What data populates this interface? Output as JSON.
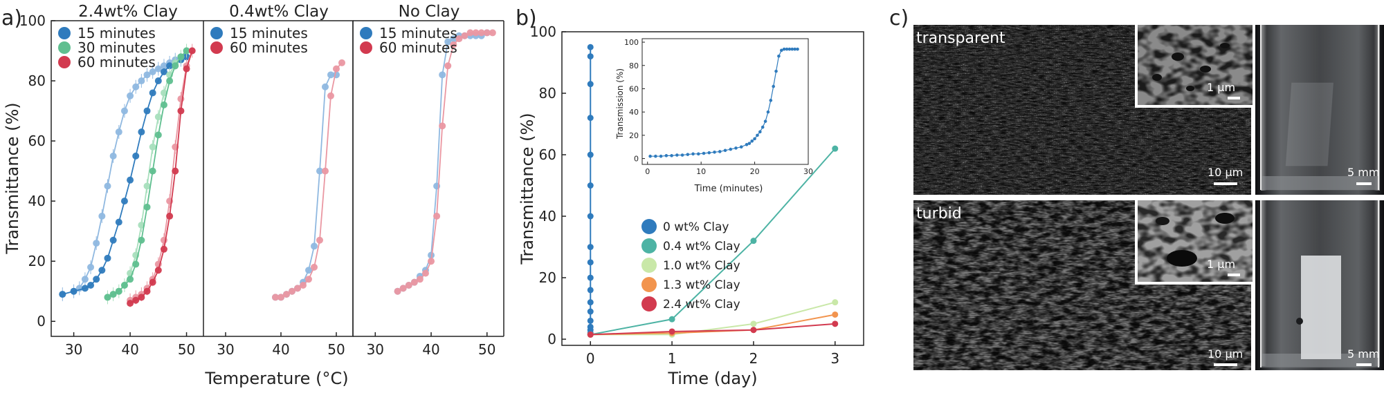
{
  "panel_labels": {
    "a": "a)",
    "b": "b)",
    "c": "c)"
  },
  "chart_data": [
    {
      "panel": "a",
      "type": "line",
      "ylabel": "Transmittance (%)",
      "xlabel": "Temperature (°C)",
      "ylim": [
        -5,
        100
      ],
      "yticks": [
        0,
        20,
        40,
        60,
        80,
        100
      ],
      "subplots": [
        {
          "title": "2.4wt% Clay",
          "xlim": [
            26,
            53
          ],
          "xticks": [
            30,
            40,
            50
          ],
          "series": [
            {
              "name": "15 minutes",
              "color": "#2f7bbd",
              "light_color": "#8fb8e0",
              "runs": [
                {
                  "x": [
                    28,
                    30,
                    31,
                    32,
                    33,
                    34,
                    35,
                    36,
                    37,
                    38,
                    39,
                    40,
                    41,
                    42,
                    43,
                    44,
                    45,
                    46,
                    47,
                    48,
                    49,
                    50
                  ],
                  "y": [
                    9,
                    10,
                    11,
                    14,
                    18,
                    26,
                    35,
                    45,
                    55,
                    63,
                    70,
                    75,
                    78,
                    80,
                    82,
                    83,
                    84,
                    85,
                    86,
                    87,
                    87,
                    88
                  ]
                },
                {
                  "x": [
                    28,
                    30,
                    32,
                    33,
                    34,
                    35,
                    36,
                    37,
                    38,
                    39,
                    40,
                    41,
                    42,
                    43,
                    44,
                    45,
                    46,
                    47,
                    48,
                    49,
                    50
                  ],
                  "y": [
                    9,
                    10,
                    11,
                    12,
                    14,
                    17,
                    21,
                    27,
                    33,
                    40,
                    47,
                    55,
                    63,
                    70,
                    76,
                    80,
                    83,
                    85,
                    86,
                    87,
                    88
                  ]
                }
              ]
            },
            {
              "name": "30 minutes",
              "color": "#5fbf8f",
              "light_color": "#a8dfbd",
              "runs": [
                {
                  "x": [
                    36,
                    37,
                    38,
                    39,
                    40,
                    41,
                    42,
                    43,
                    44,
                    45,
                    46,
                    47,
                    48,
                    49,
                    50
                  ],
                  "y": [
                    8,
                    9,
                    10,
                    12,
                    16,
                    22,
                    32,
                    45,
                    58,
                    68,
                    76,
                    82,
                    86,
                    88,
                    90
                  ]
                },
                {
                  "x": [
                    36,
                    37,
                    38,
                    39,
                    40,
                    41,
                    42,
                    43,
                    44,
                    45,
                    46,
                    47,
                    48,
                    49,
                    50
                  ],
                  "y": [
                    8,
                    9,
                    10,
                    12,
                    14,
                    19,
                    27,
                    38,
                    50,
                    62,
                    72,
                    80,
                    85,
                    88,
                    90
                  ]
                }
              ]
            },
            {
              "name": "60 minutes",
              "color": "#d23a4f",
              "light_color": "#ea97a2",
              "runs": [
                {
                  "x": [
                    40,
                    41,
                    42,
                    43,
                    44,
                    45,
                    46,
                    47,
                    48,
                    49,
                    50,
                    51
                  ],
                  "y": [
                    7,
                    8,
                    9,
                    11,
                    14,
                    19,
                    27,
                    40,
                    58,
                    74,
                    85,
                    90
                  ]
                },
                {
                  "x": [
                    40,
                    41,
                    42,
                    43,
                    44,
                    45,
                    46,
                    47,
                    48,
                    49,
                    50,
                    51
                  ],
                  "y": [
                    6,
                    7,
                    8,
                    10,
                    13,
                    17,
                    24,
                    35,
                    50,
                    70,
                    84,
                    90
                  ]
                }
              ]
            }
          ]
        },
        {
          "title": "0.4wt% Clay",
          "xlim": [
            26,
            53
          ],
          "xticks": [
            30,
            40,
            50
          ],
          "series": [
            {
              "name": "15 minutes",
              "color": "#2f7bbd",
              "light_color": "#8fb8e0",
              "runs": [
                {
                  "x": [
                    39,
                    40,
                    41,
                    42,
                    43,
                    44,
                    45,
                    46,
                    47,
                    48,
                    49,
                    50
                  ],
                  "y": [
                    8,
                    8,
                    9,
                    10,
                    11,
                    13,
                    17,
                    25,
                    50,
                    78,
                    82,
                    82
                  ]
                }
              ]
            },
            {
              "name": "60 minutes",
              "color": "#d23a4f",
              "light_color": "#ea97a2",
              "runs": [
                {
                  "x": [
                    39,
                    40,
                    41,
                    42,
                    43,
                    44,
                    45,
                    46,
                    47,
                    48,
                    49,
                    50,
                    51
                  ],
                  "y": [
                    8,
                    8,
                    9,
                    10,
                    11,
                    12,
                    14,
                    18,
                    27,
                    50,
                    75,
                    84,
                    86
                  ]
                }
              ]
            }
          ]
        },
        {
          "title": "No Clay",
          "xlim": [
            26,
            53
          ],
          "xticks": [
            30,
            40,
            50
          ],
          "series": [
            {
              "name": "15 minutes",
              "color": "#2f7bbd",
              "light_color": "#8fb8e0",
              "runs": [
                {
                  "x": [
                    34,
                    35,
                    36,
                    37,
                    38,
                    39,
                    40,
                    41,
                    42,
                    43,
                    44,
                    45,
                    46,
                    47,
                    48,
                    49,
                    50
                  ],
                  "y": [
                    10,
                    11,
                    12,
                    13,
                    15,
                    17,
                    22,
                    45,
                    82,
                    93,
                    94,
                    95,
                    95,
                    95,
                    95,
                    95,
                    96
                  ]
                }
              ]
            },
            {
              "name": "60 minutes",
              "color": "#d23a4f",
              "light_color": "#ea97a2",
              "runs": [
                {
                  "x": [
                    34,
                    35,
                    36,
                    37,
                    38,
                    39,
                    40,
                    41,
                    42,
                    43,
                    44,
                    45,
                    46,
                    47,
                    48,
                    49,
                    50,
                    51
                  ],
                  "y": [
                    10,
                    11,
                    12,
                    13,
                    14,
                    16,
                    20,
                    35,
                    65,
                    85,
                    92,
                    94,
                    95,
                    96,
                    96,
                    96,
                    96,
                    96
                  ]
                }
              ]
            }
          ]
        }
      ]
    },
    {
      "panel": "b",
      "type": "line",
      "xlabel": "Time (day)",
      "ylabel": "Transmittance (%)",
      "xlim": [
        -0.35,
        3.35
      ],
      "ylim": [
        -2,
        100
      ],
      "xticks": [
        0,
        1,
        2,
        3
      ],
      "yticks": [
        0,
        20,
        40,
        60,
        80,
        100
      ],
      "series": [
        {
          "name": "0 wt% Clay",
          "color": "#2f7bbd",
          "x": [
            0,
            0,
            0,
            0,
            0,
            0,
            0,
            0,
            0,
            0,
            0,
            0,
            0,
            0,
            0,
            0,
            0,
            0
          ],
          "y": [
            1.5,
            2,
            3,
            4,
            6,
            9,
            12,
            16,
            20,
            25,
            30,
            40,
            50,
            60,
            72,
            83,
            92,
            95
          ]
        },
        {
          "name": "0.4 wt% Clay",
          "color": "#4db3a4",
          "x": [
            0,
            1,
            2,
            3
          ],
          "y": [
            1.5,
            6.5,
            32,
            62
          ]
        },
        {
          "name": "1.0 wt% Clay",
          "color": "#c9e8a8",
          "x": [
            0,
            1,
            2,
            3
          ],
          "y": [
            1.5,
            1.5,
            5,
            12
          ]
        },
        {
          "name": "1.3 wt% Clay",
          "color": "#f2944e",
          "x": [
            0,
            1,
            2,
            3
          ],
          "y": [
            1.5,
            2,
            3,
            8
          ]
        },
        {
          "name": "2.4 wt% Clay",
          "color": "#d23a4f",
          "x": [
            0,
            1,
            2,
            3
          ],
          "y": [
            1.5,
            2.5,
            3,
            5
          ]
        }
      ],
      "inset": {
        "xlabel": "Time (minutes)",
        "ylabel": "Transmission (%)",
        "xlim": [
          -1,
          30
        ],
        "ylim": [
          -5,
          103
        ],
        "xticks": [
          0,
          10,
          20,
          30
        ],
        "yticks": [
          0,
          20,
          40,
          60,
          80,
          100
        ],
        "color": "#2f7bbd",
        "x": [
          0.5,
          1.5,
          2.5,
          3.5,
          4.5,
          5.5,
          6.5,
          7.5,
          8.5,
          9.5,
          10.5,
          11.5,
          12.5,
          13.5,
          14.5,
          15.5,
          16.5,
          17.5,
          18.5,
          19.0,
          19.5,
          20.0,
          20.5,
          21.0,
          21.5,
          22.0,
          22.5,
          23.0,
          23.5,
          24.0,
          24.5,
          25.0,
          25.5,
          26.0,
          26.5,
          27.0,
          27.5,
          28.0
        ],
        "y": [
          2,
          2,
          2,
          2.5,
          2.5,
          3,
          3,
          3.5,
          4,
          4,
          4.5,
          5,
          5.5,
          6,
          7,
          8,
          9,
          10,
          12,
          13,
          15,
          17,
          20,
          23,
          27,
          32,
          40,
          50,
          62,
          75,
          88,
          93,
          94,
          94,
          94,
          94,
          94,
          94
        ]
      }
    }
  ],
  "photos": {
    "top_label": "transparent",
    "bottom_label": "turbid",
    "scale_bars": {
      "sem_top": "10 μm",
      "inset_top": "1 μm",
      "vial_top": "5 mm",
      "sem_bottom": "10 μm",
      "inset_bottom": "1 μm",
      "vial_bottom": "5 mm"
    }
  }
}
